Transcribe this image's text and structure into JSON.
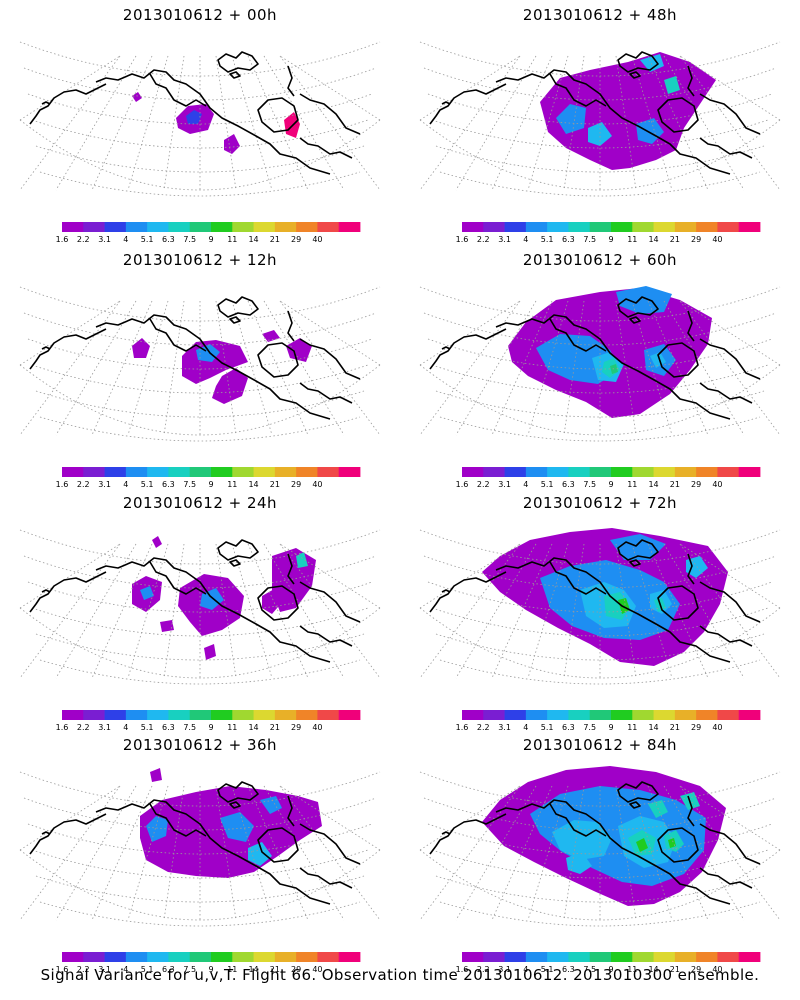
{
  "caption": "Signal Variance for u,v,T. Flight 66. Observation time 2013010612. 2013010300 ensemble.",
  "colorbar": {
    "levels": [
      "1.6",
      "2.2",
      "3.1",
      "4",
      "5.1",
      "6.3",
      "7.5",
      "9",
      "11",
      "14",
      "21",
      "29",
      "40"
    ],
    "colors": [
      "#a000c8",
      "#7a1ed2",
      "#2e40e8",
      "#1e8ef2",
      "#1fb8f0",
      "#18d0c0",
      "#20c878",
      "#20cc20",
      "#a0d830",
      "#dcd830",
      "#e8b028",
      "#f08428",
      "#f04848",
      "#f0007a"
    ]
  },
  "chart_data": [
    {
      "type": "heatmap",
      "title": "2013010612 + 00h",
      "lead_hours": 0,
      "variance_extent": "small isolated patches",
      "max_level": "40"
    },
    {
      "type": "heatmap",
      "title": "2013010612 + 12h",
      "lead_hours": 12,
      "variance_extent": "small patches",
      "max_level": "5.1"
    },
    {
      "type": "heatmap",
      "title": "2013010612 + 24h",
      "lead_hours": 24,
      "variance_extent": "scattered patches",
      "max_level": "5.1"
    },
    {
      "type": "heatmap",
      "title": "2013010612 + 36h",
      "lead_hours": 36,
      "variance_extent": "broad region",
      "max_level": "6.3"
    },
    {
      "type": "heatmap",
      "title": "2013010612 + 48h",
      "lead_hours": 48,
      "variance_extent": "broad region",
      "max_level": "6.3"
    },
    {
      "type": "heatmap",
      "title": "2013010612 + 60h",
      "lead_hours": 60,
      "variance_extent": "broad region",
      "max_level": "9"
    },
    {
      "type": "heatmap",
      "title": "2013010612 + 72h",
      "lead_hours": 72,
      "variance_extent": "most of domain",
      "max_level": "9"
    },
    {
      "type": "heatmap",
      "title": "2013010612 + 84h",
      "lead_hours": 84,
      "variance_extent": "most of domain",
      "max_level": "9"
    }
  ]
}
